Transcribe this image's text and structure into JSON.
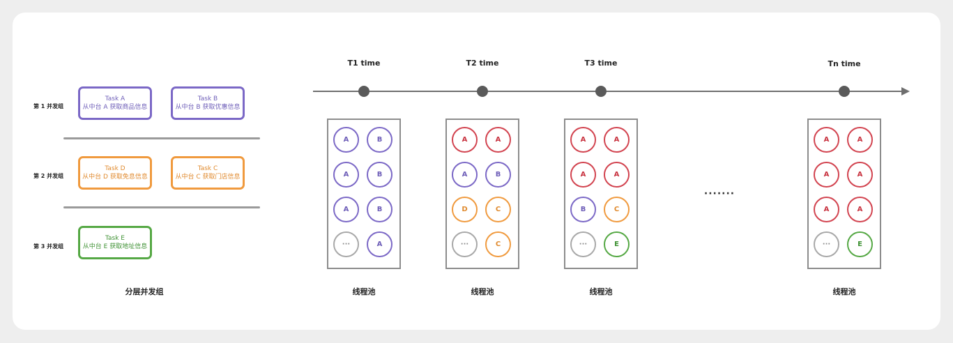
{
  "groups": [
    {
      "label": "第 1 并发组",
      "tasks": [
        {
          "title": "Task A",
          "desc": "从中台 A 获取商品信息",
          "color": "purple"
        },
        {
          "title": "Task B",
          "desc": "从中台 B 获取优惠信息",
          "color": "purple"
        }
      ]
    },
    {
      "label": "第 2 并发组",
      "tasks": [
        {
          "title": "Task D",
          "desc": "从中台 D 获取免息信息",
          "color": "orange"
        },
        {
          "title": "Task C",
          "desc": "从中台 C 获取门店信息",
          "color": "orange"
        }
      ]
    },
    {
      "label": "第 3 并发组",
      "tasks": [
        {
          "title": "Task E",
          "desc": "从中台 E 获取地址信息",
          "color": "green"
        }
      ]
    }
  ],
  "left_caption": "分层并发组",
  "timeline": {
    "points": [
      "T1 time",
      "T2 time",
      "T3 time",
      "Tn time"
    ],
    "gap_label": "·······"
  },
  "pools": [
    {
      "caption": "线程池",
      "cells": [
        [
          "A",
          "purple"
        ],
        [
          "B",
          "purple"
        ],
        [
          "A",
          "purple"
        ],
        [
          "B",
          "purple"
        ],
        [
          "A",
          "purple"
        ],
        [
          "B",
          "purple"
        ],
        [
          "···",
          "gray"
        ],
        [
          "A",
          "purple"
        ]
      ]
    },
    {
      "caption": "线程池",
      "cells": [
        [
          "A",
          "red"
        ],
        [
          "A",
          "red"
        ],
        [
          "A",
          "purple"
        ],
        [
          "B",
          "purple"
        ],
        [
          "D",
          "orange"
        ],
        [
          "C",
          "orange"
        ],
        [
          "···",
          "gray"
        ],
        [
          "C",
          "orange"
        ]
      ]
    },
    {
      "caption": "线程池",
      "cells": [
        [
          "A",
          "red"
        ],
        [
          "A",
          "red"
        ],
        [
          "A",
          "red"
        ],
        [
          "A",
          "red"
        ],
        [
          "B",
          "purple"
        ],
        [
          "C",
          "orange"
        ],
        [
          "···",
          "gray"
        ],
        [
          "E",
          "green"
        ]
      ]
    },
    {
      "caption": "线程池",
      "cells": [
        [
          "A",
          "red"
        ],
        [
          "A",
          "red"
        ],
        [
          "A",
          "red"
        ],
        [
          "A",
          "red"
        ],
        [
          "A",
          "red"
        ],
        [
          "A",
          "red"
        ],
        [
          "···",
          "gray"
        ],
        [
          "E",
          "green"
        ]
      ]
    }
  ],
  "colors": {
    "purple": "#7b68c6",
    "red": "#d2434f",
    "orange": "#f09a3e",
    "green": "#55a844",
    "gray": "#a8a8a8",
    "axis": "#6e6e6e"
  }
}
